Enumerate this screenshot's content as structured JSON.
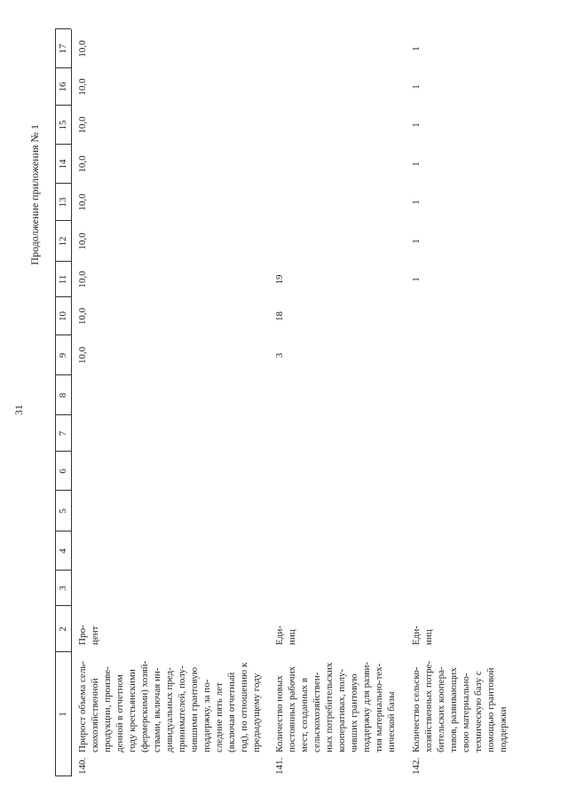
{
  "header": {
    "page_number": "31",
    "continuation": "Продолжение приложения № 1"
  },
  "table": {
    "column_numbers": [
      "1",
      "2",
      "3",
      "4",
      "5",
      "6",
      "7",
      "8",
      "9",
      "10",
      "11",
      "12",
      "13",
      "14",
      "15",
      "16",
      "17"
    ],
    "rows": [
      {
        "number": "140.",
        "name_lines": [
          "Прирост объема сель-",
          "скохозяйственной",
          "продукции, произве-",
          "денной в отчетном",
          "году крестьянскими",
          "(фермерскими) хозяй-",
          "ствами, включая ин-",
          "дивидуальных пред-",
          "принимателей, полу-",
          "чившими грантовую",
          "поддержку, за по-",
          "следние пять лет",
          "(включая отчетный",
          "год), по отношению к",
          "предыдущему году"
        ],
        "unit_lines": [
          "Про-",
          "цент"
        ],
        "values": [
          null,
          null,
          null,
          null,
          null,
          null,
          "10,0",
          "10,0",
          "10,0",
          "10,0",
          "10,0",
          "10,0",
          "10,0",
          "10,0",
          "10,0"
        ]
      },
      {
        "number": "141.",
        "name_lines": [
          "Количество новых",
          "постоянных рабочих",
          "мест, созданных в",
          "сельскохозяйствен-",
          "ных потребительских",
          "кооперативах, полу-",
          "чивших грантовую",
          "поддержку для разви-",
          "тия материально-тех-",
          "нической базы"
        ],
        "unit_lines": [
          "Еди-",
          "ниц"
        ],
        "values": [
          null,
          null,
          null,
          null,
          null,
          null,
          "3",
          "18",
          "19",
          null,
          null,
          null,
          null,
          null,
          null
        ]
      },
      {
        "number": "142.",
        "name_lines": [
          "Количество сельско-",
          "хозяйственных потре-",
          "бительских коопера-",
          "тивов, развивающих",
          "свою материально-",
          "техническую базу с",
          "помощью грантовой",
          "поддержки"
        ],
        "unit_lines": [
          "Еди-",
          "ниц"
        ],
        "values": [
          null,
          null,
          null,
          null,
          null,
          null,
          null,
          null,
          "1",
          "1",
          "1",
          "1",
          "1",
          "1",
          "1"
        ]
      }
    ]
  }
}
